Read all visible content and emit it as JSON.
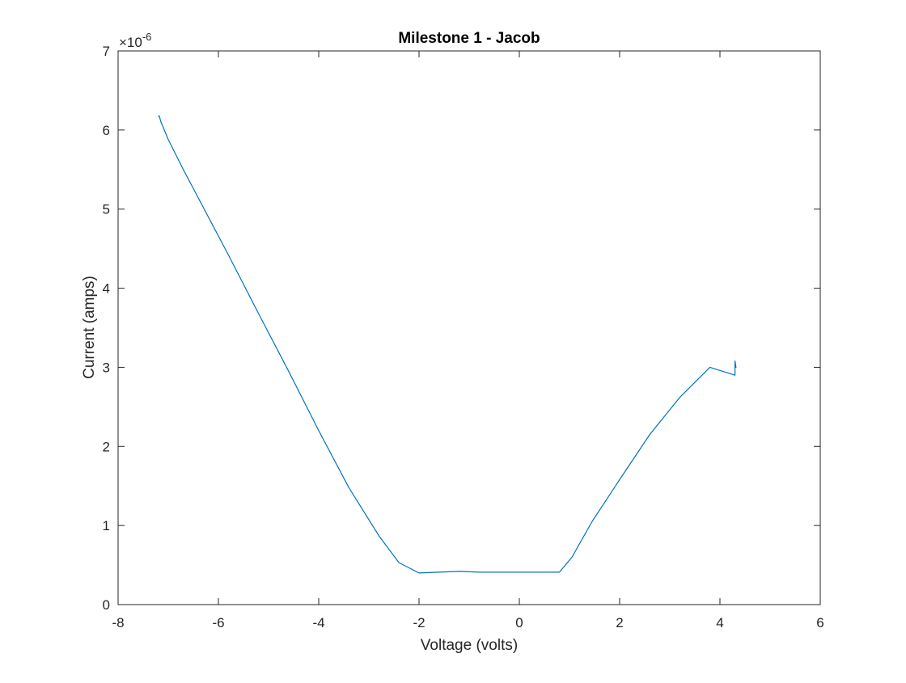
{
  "chart_data": {
    "type": "line",
    "title": "Milestone 1 - Jacob",
    "xlabel": "Voltage (volts)",
    "ylabel": "Current (amps)",
    "xlim": [
      -8,
      6
    ],
    "ylim": [
      0,
      7e-06
    ],
    "xticks": [
      -8,
      -6,
      -4,
      -2,
      0,
      2,
      4,
      6
    ],
    "xtick_labels": [
      "-8",
      "-6",
      "-4",
      "-2",
      "0",
      "2",
      "4",
      "6"
    ],
    "yticks": [
      0,
      1e-06,
      2e-06,
      3e-06,
      4e-06,
      5e-06,
      6e-06,
      7e-06
    ],
    "ytick_labels": [
      "0",
      "1",
      "2",
      "3",
      "4",
      "5",
      "6",
      "7"
    ],
    "y_exponent_label": "×10",
    "y_exponent": "-6",
    "grid": false,
    "line_color": "#0072BD",
    "series": [
      {
        "x": [
          -7.2,
          -7.18,
          -7.15,
          -7.0,
          -6.7,
          -6.3,
          -5.8,
          -5.2,
          -4.6,
          -4.0,
          -3.4,
          -2.8,
          -2.4,
          -2.0,
          -1.6,
          -1.2,
          -0.8,
          -0.4,
          0.0,
          0.4,
          0.8,
          1.05,
          1.45,
          2.0,
          2.6,
          3.2,
          3.8,
          4.3,
          4.3,
          4.32,
          4.3
        ],
        "y": [
          6.17e-06,
          6.18e-06,
          6.11e-06,
          5.88e-06,
          5.5e-06,
          5.02e-06,
          4.42e-06,
          3.68e-06,
          2.95e-06,
          2.2e-06,
          1.48e-06,
          8.7e-07,
          5.3e-07,
          4e-07,
          4.1e-07,
          4.2e-07,
          4.1e-07,
          4.1e-07,
          4.1e-07,
          4.1e-07,
          4.1e-07,
          6e-07,
          1.05e-06,
          1.58e-06,
          2.15e-06,
          2.62e-06,
          3e-06,
          2.9e-06,
          3.08e-06,
          3e-06,
          3e-06
        ]
      }
    ]
  }
}
